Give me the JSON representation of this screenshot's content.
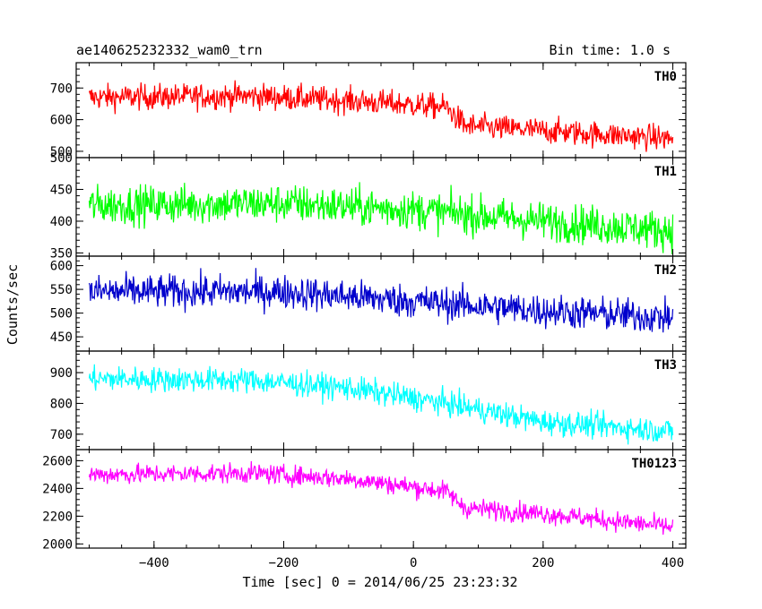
{
  "header": {
    "title": "ae140625232332_wam0_trn",
    "bin_time": "Bin time: 1.0 s"
  },
  "axes": {
    "xlabel": "Time [sec] 0 = 2014/06/25 23:23:32",
    "ylabel": "Counts/sec",
    "xlim": [
      -520,
      420
    ],
    "xticks": [
      -400,
      -200,
      0,
      200,
      400
    ]
  },
  "chart_data": [
    {
      "type": "line",
      "label": "TH0",
      "color": "#ff0000",
      "ylim": [
        480,
        780
      ],
      "yticks": [
        500,
        600,
        700
      ],
      "x_range": [
        -500,
        400
      ],
      "trend": {
        "x": [
          -500,
          -250,
          -100,
          50,
          80,
          200,
          400
        ],
        "y": [
          670,
          675,
          660,
          640,
          580,
          565,
          540
        ]
      },
      "noise_amplitude": 40
    },
    {
      "type": "line",
      "label": "TH1",
      "color": "#00ff00",
      "ylim": [
        345,
        500
      ],
      "yticks": [
        350,
        400,
        450,
        500
      ],
      "x_range": [
        -500,
        400
      ],
      "trend": {
        "x": [
          -500,
          -200,
          0,
          200,
          400
        ],
        "y": [
          425,
          428,
          418,
          400,
          385
        ]
      },
      "noise_amplitude": 30
    },
    {
      "type": "line",
      "label": "TH2",
      "color": "#0000cc",
      "ylim": [
        420,
        620
      ],
      "yticks": [
        450,
        500,
        550,
        600
      ],
      "x_range": [
        -500,
        400
      ],
      "trend": {
        "x": [
          -500,
          -200,
          0,
          200,
          400
        ],
        "y": [
          545,
          545,
          525,
          505,
          490
        ]
      },
      "noise_amplitude": 35
    },
    {
      "type": "line",
      "label": "TH3",
      "color": "#00ffff",
      "ylim": [
        650,
        970
      ],
      "yticks": [
        700,
        800,
        900
      ],
      "x_range": [
        -500,
        400
      ],
      "trend": {
        "x": [
          -500,
          -250,
          -100,
          50,
          200,
          400
        ],
        "y": [
          880,
          875,
          850,
          800,
          740,
          710
        ]
      },
      "noise_amplitude": 40
    },
    {
      "type": "line",
      "label": "TH0123",
      "color": "#ff00ff",
      "ylim": [
        1970,
        2680
      ],
      "yticks": [
        2000,
        2200,
        2400,
        2600
      ],
      "x_range": [
        -500,
        400
      ],
      "trend": {
        "x": [
          -500,
          -250,
          -100,
          50,
          80,
          200,
          400
        ],
        "y": [
          2500,
          2510,
          2470,
          2380,
          2260,
          2220,
          2120
        ]
      },
      "noise_amplitude": 70
    }
  ]
}
